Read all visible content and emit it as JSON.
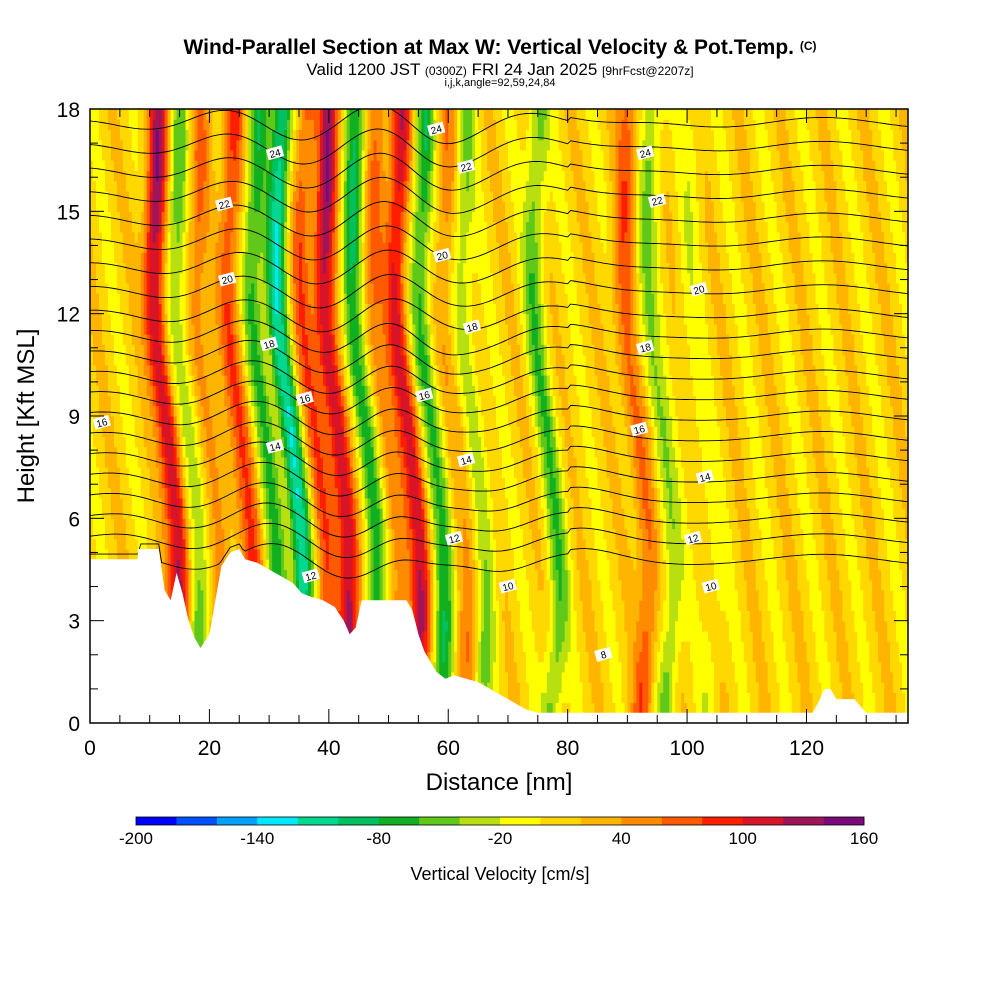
{
  "header": {
    "title": "Wind-Parallel Section at Max W: Vertical Velocity & Pot.Temp.",
    "title_mark": "(C)",
    "valid_prefix": "Valid 1200 JST",
    "valid_utc": "(0300Z)",
    "valid_date": "FRI 24 Jan 2025",
    "forecast_tag": "[9hrFcst@2207z]",
    "params": "i,j,k,angle=92,59,24,84"
  },
  "chart_data": {
    "type": "heatmap",
    "xlabel": "Distance [nm]",
    "ylabel": "Height [Kft MSL]",
    "xlim": [
      0,
      137
    ],
    "ylim": [
      0,
      18
    ],
    "x_ticks": [
      "0",
      "20",
      "40",
      "60",
      "80",
      "100",
      "120"
    ],
    "x_tick_values": [
      0,
      20,
      40,
      60,
      80,
      100,
      120
    ],
    "y_ticks": [
      "0",
      "3",
      "6",
      "9",
      "12",
      "15",
      "18"
    ],
    "y_tick_values": [
      0,
      3,
      6,
      9,
      12,
      15,
      18
    ],
    "colorbar": {
      "title": "Vertical Velocity [cm/s]",
      "min": -200,
      "max": 160,
      "step": 20,
      "tick_labels": [
        "-200",
        "-140",
        "-80",
        "-20",
        "40",
        "100",
        "160"
      ],
      "tick_values": [
        -200,
        -140,
        -80,
        -20,
        40,
        100,
        160
      ],
      "colors": [
        "#0000ff",
        "#0050ff",
        "#00a0ff",
        "#00e8ff",
        "#00d890",
        "#00c060",
        "#10b020",
        "#60c818",
        "#b8e010",
        "#ffff00",
        "#ffd800",
        "#ffb400",
        "#ff8c00",
        "#ff5a00",
        "#ff1e00",
        "#d81428",
        "#a0145a",
        "#7a0a7a"
      ]
    },
    "wave_bands": [
      {
        "x": 13.5,
        "value": 120
      },
      {
        "x": 17,
        "value": -60
      },
      {
        "x": 20.5,
        "value": 50
      },
      {
        "x": 26,
        "value": 70
      },
      {
        "x": 30,
        "value": -80
      },
      {
        "x": 34,
        "value": -120
      },
      {
        "x": 38,
        "value": 60
      },
      {
        "x": 42,
        "value": 120
      },
      {
        "x": 46.5,
        "value": -90
      },
      {
        "x": 50,
        "value": 50
      },
      {
        "x": 54,
        "value": 100
      },
      {
        "x": 58,
        "value": -80
      },
      {
        "x": 62,
        "value": 40
      },
      {
        "x": 65,
        "value": -50
      },
      {
        "x": 77,
        "value": -60
      },
      {
        "x": 92,
        "value": 60
      },
      {
        "x": 96,
        "value": -50
      },
      {
        "x": 103,
        "value": -20
      }
    ],
    "terrain_kft": [
      [
        0,
        4.8
      ],
      [
        8,
        4.8
      ],
      [
        8,
        5.1
      ],
      [
        11.5,
        5.1
      ],
      [
        12.5,
        3.9
      ],
      [
        13.5,
        3.6
      ],
      [
        14.5,
        4.4
      ],
      [
        15.5,
        3.8
      ],
      [
        16.5,
        3.0
      ],
      [
        17.5,
        2.5
      ],
      [
        18.5,
        2.2
      ],
      [
        20,
        2.6
      ],
      [
        21,
        3.6
      ],
      [
        22,
        4.6
      ],
      [
        23.5,
        5.0
      ],
      [
        25,
        5.1
      ],
      [
        26,
        4.8
      ],
      [
        28,
        4.7
      ],
      [
        30,
        4.5
      ],
      [
        32,
        4.3
      ],
      [
        34,
        4.1
      ],
      [
        35.5,
        3.8
      ],
      [
        37,
        3.7
      ],
      [
        39,
        3.6
      ],
      [
        41,
        3.4
      ],
      [
        42.5,
        3.0
      ],
      [
        43.5,
        2.6
      ],
      [
        44.5,
        2.8
      ],
      [
        45.5,
        3.6
      ],
      [
        47,
        3.6
      ],
      [
        50,
        3.6
      ],
      [
        53,
        3.6
      ],
      [
        54,
        3.3
      ],
      [
        55,
        2.6
      ],
      [
        56,
        2.1
      ],
      [
        57,
        1.8
      ],
      [
        58,
        1.5
      ],
      [
        59.5,
        1.3
      ],
      [
        61,
        1.4
      ],
      [
        63,
        1.3
      ],
      [
        65,
        1.2
      ],
      [
        67,
        1.0
      ],
      [
        69,
        0.8
      ],
      [
        71,
        0.6
      ],
      [
        73,
        0.4
      ],
      [
        75,
        0.3
      ],
      [
        80,
        0.3
      ],
      [
        85,
        0.3
      ],
      [
        90,
        0.3
      ],
      [
        100,
        0.3
      ],
      [
        110,
        0.3
      ],
      [
        118,
        0.3
      ],
      [
        121,
        0.3
      ],
      [
        122,
        0.6
      ],
      [
        123,
        1.0
      ],
      [
        124,
        1.0
      ],
      [
        125,
        0.7
      ],
      [
        128,
        0.7
      ],
      [
        130,
        0.3
      ],
      [
        137,
        0.3
      ]
    ],
    "theta_contours": [
      {
        "base": 4.8,
        "label": ""
      },
      {
        "base": 5.4,
        "label": "8"
      },
      {
        "base": 6.0,
        "label": ""
      },
      {
        "base": 6.6,
        "label": "10"
      },
      {
        "base": 7.2,
        "label": ""
      },
      {
        "base": 7.8,
        "label": "12"
      },
      {
        "base": 8.4,
        "label": ""
      },
      {
        "base": 9.0,
        "label": "14"
      },
      {
        "base": 9.6,
        "label": ""
      },
      {
        "base": 10.2,
        "label": "16"
      },
      {
        "base": 10.8,
        "label": ""
      },
      {
        "base": 11.4,
        "label": "18"
      },
      {
        "base": 12.0,
        "label": ""
      },
      {
        "base": 12.7,
        "label": "20"
      },
      {
        "base": 13.4,
        "label": ""
      },
      {
        "base": 14.1,
        "label": "22"
      },
      {
        "base": 14.8,
        "label": ""
      },
      {
        "base": 15.5,
        "label": "24"
      },
      {
        "base": 16.2,
        "label": ""
      },
      {
        "base": 16.9,
        "label": ""
      },
      {
        "base": 17.6,
        "label": ""
      }
    ],
    "contour_label_marks": [
      {
        "x": 2,
        "y": 8.8,
        "label": "16"
      },
      {
        "x": 23,
        "y": 13.0,
        "label": "20"
      },
      {
        "x": 22.5,
        "y": 15.2,
        "label": "22"
      },
      {
        "x": 31,
        "y": 16.7,
        "label": "24"
      },
      {
        "x": 30,
        "y": 11.1,
        "label": "18"
      },
      {
        "x": 31,
        "y": 8.1,
        "label": "14"
      },
      {
        "x": 36,
        "y": 9.5,
        "label": "16"
      },
      {
        "x": 37,
        "y": 4.3,
        "label": "12"
      },
      {
        "x": 56,
        "y": 9.6,
        "label": "16"
      },
      {
        "x": 59,
        "y": 13.7,
        "label": "20"
      },
      {
        "x": 63,
        "y": 16.3,
        "label": "22"
      },
      {
        "x": 58,
        "y": 17.4,
        "label": "24"
      },
      {
        "x": 64,
        "y": 11.6,
        "label": "18"
      },
      {
        "x": 63,
        "y": 7.7,
        "label": "14"
      },
      {
        "x": 61,
        "y": 5.4,
        "label": "12"
      },
      {
        "x": 70,
        "y": 4.0,
        "label": "10"
      },
      {
        "x": 93,
        "y": 11.0,
        "label": "18"
      },
      {
        "x": 92,
        "y": 8.6,
        "label": "16"
      },
      {
        "x": 95,
        "y": 15.3,
        "label": "22"
      },
      {
        "x": 93,
        "y": 16.7,
        "label": "24"
      },
      {
        "x": 102,
        "y": 12.7,
        "label": "20"
      },
      {
        "x": 103,
        "y": 7.2,
        "label": "14"
      },
      {
        "x": 101,
        "y": 5.4,
        "label": "12"
      },
      {
        "x": 104,
        "y": 4.0,
        "label": "10"
      },
      {
        "x": 86,
        "y": 2.0,
        "label": "8"
      }
    ]
  }
}
